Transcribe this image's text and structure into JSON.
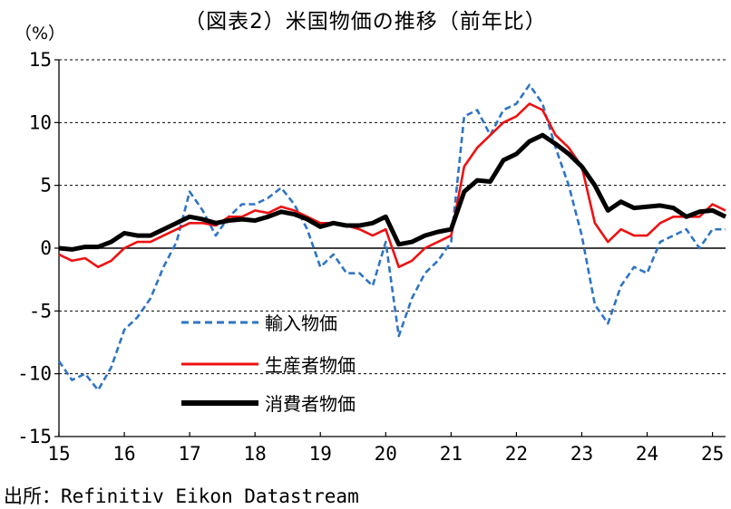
{
  "title": "（図表2）米国物価の推移（前年比）",
  "source": "出所：Refinitiv Eikon Datastream",
  "chart_data": {
    "type": "line",
    "ylabel": "（%）",
    "ylim": [
      -15,
      15
    ],
    "yticks": [
      -15,
      -10,
      -5,
      0,
      5,
      10,
      15
    ],
    "xlim": [
      15,
      25.2
    ],
    "xticks": [
      15,
      16,
      17,
      18,
      19,
      20,
      21,
      22,
      23,
      24,
      25
    ],
    "xtick_labels": [
      "15",
      "16",
      "17",
      "18",
      "19",
      "20",
      "21",
      "22",
      "23",
      "24",
      "25"
    ],
    "grid": true,
    "legend": "lower-left",
    "series": [
      {
        "name": "輸入物価",
        "color": "#2e74c4",
        "dash": "dashed",
        "x": [
          15.0,
          15.2,
          15.4,
          15.6,
          15.8,
          16.0,
          16.2,
          16.4,
          16.6,
          16.8,
          17.0,
          17.2,
          17.4,
          17.6,
          17.8,
          18.0,
          18.2,
          18.4,
          18.6,
          18.8,
          19.0,
          19.2,
          19.4,
          19.6,
          19.8,
          20.0,
          20.2,
          20.4,
          20.6,
          20.8,
          21.0,
          21.2,
          21.4,
          21.6,
          21.8,
          22.0,
          22.2,
          22.4,
          22.6,
          22.8,
          23.0,
          23.2,
          23.4,
          23.6,
          23.8,
          24.0,
          24.2,
          24.4,
          24.6,
          24.8,
          25.0,
          25.2
        ],
        "y": [
          -9.0,
          -10.5,
          -10.0,
          -11.3,
          -9.5,
          -6.5,
          -5.5,
          -4.0,
          -1.5,
          0.5,
          4.5,
          3.0,
          1.0,
          2.5,
          3.5,
          3.5,
          4.0,
          4.8,
          3.5,
          1.5,
          -1.5,
          -0.5,
          -2.0,
          -2.0,
          -3.0,
          0.5,
          -7.0,
          -4.0,
          -2.0,
          -1.0,
          0.5,
          10.5,
          11.0,
          9.0,
          11.0,
          11.5,
          13.0,
          11.5,
          8.0,
          5.0,
          1.0,
          -4.5,
          -6.0,
          -3.0,
          -1.5,
          -2.0,
          0.5,
          1.0,
          1.5,
          0.0,
          1.5,
          1.5
        ]
      },
      {
        "name": "生産者物価",
        "color": "#ee1111",
        "dash": "solid",
        "x": [
          15.0,
          15.2,
          15.4,
          15.6,
          15.8,
          16.0,
          16.2,
          16.4,
          16.6,
          16.8,
          17.0,
          17.2,
          17.4,
          17.6,
          17.8,
          18.0,
          18.2,
          18.4,
          18.6,
          18.8,
          19.0,
          19.2,
          19.4,
          19.6,
          19.8,
          20.0,
          20.2,
          20.4,
          20.6,
          20.8,
          21.0,
          21.2,
          21.4,
          21.6,
          21.8,
          22.0,
          22.2,
          22.4,
          22.6,
          22.8,
          23.0,
          23.2,
          23.4,
          23.6,
          23.8,
          24.0,
          24.2,
          24.4,
          24.6,
          24.8,
          25.0,
          25.2
        ],
        "y": [
          -0.5,
          -1.0,
          -0.8,
          -1.5,
          -1.0,
          0.0,
          0.5,
          0.5,
          1.0,
          1.5,
          2.0,
          2.0,
          1.8,
          2.5,
          2.5,
          3.0,
          2.8,
          3.3,
          3.0,
          2.5,
          2.0,
          2.0,
          1.8,
          1.5,
          1.0,
          1.5,
          -1.5,
          -1.0,
          0.0,
          0.5,
          1.0,
          6.5,
          8.0,
          9.0,
          10.0,
          10.5,
          11.5,
          11.0,
          9.0,
          8.0,
          6.5,
          2.0,
          0.5,
          1.5,
          1.0,
          1.0,
          2.0,
          2.5,
          2.5,
          2.5,
          3.5,
          3.0
        ]
      },
      {
        "name": "消費者物価",
        "color": "#000000",
        "dash": "solid",
        "x": [
          15.0,
          15.2,
          15.4,
          15.6,
          15.8,
          16.0,
          16.2,
          16.4,
          16.6,
          16.8,
          17.0,
          17.2,
          17.4,
          17.6,
          17.8,
          18.0,
          18.2,
          18.4,
          18.6,
          18.8,
          19.0,
          19.2,
          19.4,
          19.6,
          19.8,
          20.0,
          20.2,
          20.4,
          20.6,
          20.8,
          21.0,
          21.2,
          21.4,
          21.6,
          21.8,
          22.0,
          22.2,
          22.4,
          22.6,
          22.8,
          23.0,
          23.2,
          23.4,
          23.6,
          23.8,
          24.0,
          24.2,
          24.4,
          24.6,
          24.8,
          25.0,
          25.2
        ],
        "y": [
          0.0,
          -0.1,
          0.1,
          0.1,
          0.5,
          1.2,
          1.0,
          1.0,
          1.5,
          2.0,
          2.5,
          2.3,
          2.0,
          2.2,
          2.3,
          2.2,
          2.5,
          2.9,
          2.7,
          2.3,
          1.7,
          2.0,
          1.8,
          1.8,
          2.0,
          2.5,
          0.3,
          0.5,
          1.0,
          1.3,
          1.5,
          4.5,
          5.4,
          5.3,
          7.0,
          7.5,
          8.5,
          9.0,
          8.3,
          7.5,
          6.5,
          5.0,
          3.0,
          3.7,
          3.2,
          3.3,
          3.4,
          3.2,
          2.5,
          2.9,
          3.0,
          2.5
        ]
      }
    ]
  }
}
